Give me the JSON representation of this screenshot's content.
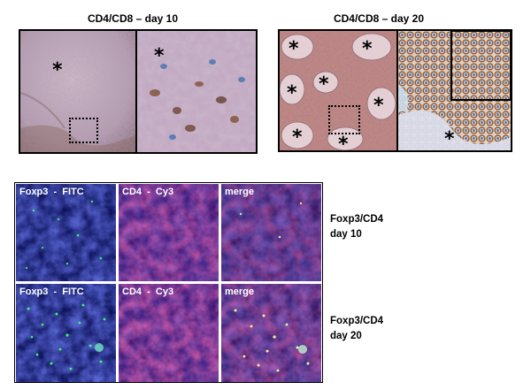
{
  "top_titles": {
    "left": "CD4/CD8 – day 10",
    "right": "CD4/CD8 – day 20"
  },
  "star_glyph": "*",
  "fluor_labels": {
    "foxp3": "Foxp3  -  FITC",
    "cd4": "CD4  -  Cy3",
    "merge": "merge"
  },
  "side_labels": {
    "row1": {
      "line1": "Foxp3/CD4",
      "line2": "day 10"
    },
    "row2": {
      "line1": "Foxp3/CD4",
      "line2": "day 20"
    }
  },
  "colors": {
    "ihc_pink": "#b79cb0",
    "ihc_brown": "#7a4a2e",
    "hematoxylin_blue": "#3b6fb0",
    "fitc_green": "#3cff6a",
    "cy3_red": "#ff2a5a",
    "dapi_blue": "#1f2ecc"
  }
}
